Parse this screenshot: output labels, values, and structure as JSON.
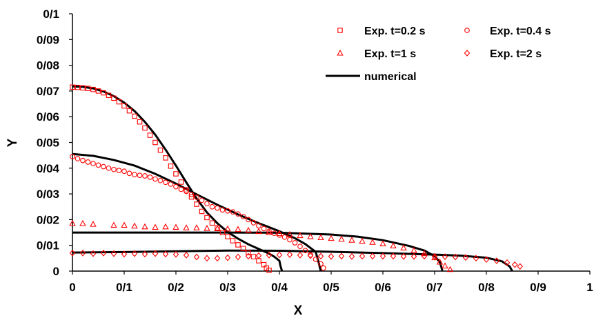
{
  "chart_data": {
    "type": "scatter",
    "xlabel": "X",
    "ylabel": "Y",
    "xlim": [
      0,
      1
    ],
    "ylim": [
      0,
      0.1
    ],
    "x_ticks": [
      {
        "value": 0,
        "label": "0"
      },
      {
        "value": 0.1,
        "label": "0/1"
      },
      {
        "value": 0.2,
        "label": "0/2"
      },
      {
        "value": 0.3,
        "label": "0/3"
      },
      {
        "value": 0.4,
        "label": "0/4"
      },
      {
        "value": 0.5,
        "label": "0/5"
      },
      {
        "value": 0.6,
        "label": "0/6"
      },
      {
        "value": 0.7,
        "label": "0/7"
      },
      {
        "value": 0.8,
        "label": "0/8"
      },
      {
        "value": 0.9,
        "label": "0/9"
      },
      {
        "value": 1,
        "label": "1"
      }
    ],
    "y_ticks": [
      {
        "value": 0,
        "label": "0"
      },
      {
        "value": 0.01,
        "label": "0/01"
      },
      {
        "value": 0.02,
        "label": "0/02"
      },
      {
        "value": 0.03,
        "label": "0/03"
      },
      {
        "value": 0.04,
        "label": "0/04"
      },
      {
        "value": 0.05,
        "label": "0/05"
      },
      {
        "value": 0.06,
        "label": "0/06"
      },
      {
        "value": 0.07,
        "label": "0/07"
      },
      {
        "value": 0.08,
        "label": "0/08"
      },
      {
        "value": 0.09,
        "label": "0/09"
      },
      {
        "value": 0.1,
        "label": "0/1"
      }
    ],
    "grid": false,
    "legend_position": "top-right",
    "colors": {
      "experimental": "#ff0000",
      "numerical": "#000000",
      "axis": "#000000"
    },
    "series": [
      {
        "name": "Exp. t=0.2 s",
        "marker": "square",
        "points": [
          [
            0,
            0.0715
          ],
          [
            0.01,
            0.0714
          ],
          [
            0.02,
            0.0712
          ],
          [
            0.03,
            0.071
          ],
          [
            0.04,
            0.0706
          ],
          [
            0.05,
            0.07
          ],
          [
            0.06,
            0.0693
          ],
          [
            0.07,
            0.0683
          ],
          [
            0.08,
            0.0672
          ],
          [
            0.09,
            0.0658
          ],
          [
            0.1,
            0.0642
          ],
          [
            0.11,
            0.0623
          ],
          [
            0.12,
            0.0602
          ],
          [
            0.13,
            0.058
          ],
          [
            0.14,
            0.0556
          ],
          [
            0.15,
            0.0528
          ],
          [
            0.16,
            0.05
          ],
          [
            0.17,
            0.047
          ],
          [
            0.18,
            0.044
          ],
          [
            0.19,
            0.0408
          ],
          [
            0.2,
            0.0378
          ],
          [
            0.21,
            0.0346
          ],
          [
            0.22,
            0.0316
          ],
          [
            0.23,
            0.0288
          ],
          [
            0.24,
            0.026
          ],
          [
            0.25,
            0.0232
          ],
          [
            0.26,
            0.0208
          ],
          [
            0.27,
            0.0187
          ],
          [
            0.28,
            0.0168
          ],
          [
            0.29,
            0.015
          ],
          [
            0.3,
            0.0134
          ],
          [
            0.31,
            0.0118
          ],
          [
            0.32,
            0.0102
          ],
          [
            0.33,
            0.0088
          ],
          [
            0.34,
            0.0072
          ],
          [
            0.35,
            0.0056
          ],
          [
            0.36,
            0.004
          ],
          [
            0.37,
            0.0025
          ],
          [
            0.375,
            0.0012
          ],
          [
            0.38,
            0.0003
          ]
        ]
      },
      {
        "name": "Exp. t=0.4 s",
        "marker": "circle",
        "points": [
          [
            0,
            0.0445
          ],
          [
            0.01,
            0.0437
          ],
          [
            0.02,
            0.043
          ],
          [
            0.03,
            0.0424
          ],
          [
            0.04,
            0.0418
          ],
          [
            0.05,
            0.0412
          ],
          [
            0.06,
            0.0406
          ],
          [
            0.07,
            0.04
          ],
          [
            0.08,
            0.0395
          ],
          [
            0.09,
            0.0391
          ],
          [
            0.1,
            0.0388
          ],
          [
            0.11,
            0.038
          ],
          [
            0.12,
            0.0375
          ],
          [
            0.13,
            0.0372
          ],
          [
            0.14,
            0.037
          ],
          [
            0.15,
            0.0365
          ],
          [
            0.16,
            0.0358
          ],
          [
            0.17,
            0.0352
          ],
          [
            0.18,
            0.0345
          ],
          [
            0.19,
            0.0338
          ],
          [
            0.2,
            0.0328
          ],
          [
            0.21,
            0.0318
          ],
          [
            0.22,
            0.031
          ],
          [
            0.23,
            0.0298
          ],
          [
            0.24,
            0.0287
          ],
          [
            0.25,
            0.0275
          ],
          [
            0.26,
            0.0262
          ],
          [
            0.27,
            0.025
          ],
          [
            0.28,
            0.0245
          ],
          [
            0.29,
            0.0238
          ],
          [
            0.3,
            0.0234
          ],
          [
            0.31,
            0.023
          ],
          [
            0.32,
            0.0222
          ],
          [
            0.33,
            0.0212
          ],
          [
            0.34,
            0.02
          ],
          [
            0.35,
            0.0188
          ],
          [
            0.36,
            0.0176
          ],
          [
            0.37,
            0.0165
          ],
          [
            0.38,
            0.0155
          ],
          [
            0.39,
            0.0147
          ],
          [
            0.4,
            0.014
          ],
          [
            0.41,
            0.0132
          ],
          [
            0.42,
            0.0122
          ],
          [
            0.43,
            0.011
          ],
          [
            0.44,
            0.0096
          ],
          [
            0.45,
            0.008
          ],
          [
            0.46,
            0.0063
          ],
          [
            0.47,
            0.0046
          ],
          [
            0.48,
            0.0028
          ],
          [
            0.485,
            0.0012
          ]
        ]
      },
      {
        "name": "Exp. t=1 s",
        "marker": "triangle",
        "points": [
          [
            0,
            0.0185
          ],
          [
            0.02,
            0.0185
          ],
          [
            0.04,
            0.0182
          ],
          [
            0.08,
            0.0178
          ],
          [
            0.1,
            0.0178
          ],
          [
            0.12,
            0.0175
          ],
          [
            0.14,
            0.0172
          ],
          [
            0.16,
            0.017
          ],
          [
            0.18,
            0.0172
          ],
          [
            0.2,
            0.017
          ],
          [
            0.22,
            0.0168
          ],
          [
            0.24,
            0.0168
          ],
          [
            0.26,
            0.0166
          ],
          [
            0.28,
            0.0165
          ],
          [
            0.3,
            0.0164
          ],
          [
            0.32,
            0.0162
          ],
          [
            0.34,
            0.0158
          ],
          [
            0.36,
            0.0154
          ],
          [
            0.38,
            0.015
          ],
          [
            0.4,
            0.0146
          ],
          [
            0.42,
            0.0142
          ],
          [
            0.44,
            0.0138
          ],
          [
            0.46,
            0.0134
          ],
          [
            0.48,
            0.013
          ],
          [
            0.5,
            0.0127
          ],
          [
            0.52,
            0.0124
          ],
          [
            0.54,
            0.012
          ],
          [
            0.56,
            0.0116
          ],
          [
            0.58,
            0.0112
          ],
          [
            0.6,
            0.0106
          ],
          [
            0.62,
            0.0098
          ],
          [
            0.64,
            0.009
          ],
          [
            0.66,
            0.008
          ],
          [
            0.68,
            0.0068
          ],
          [
            0.7,
            0.0052
          ],
          [
            0.71,
            0.0035
          ],
          [
            0.72,
            0.002
          ],
          [
            0.73,
            0.0006
          ]
        ]
      },
      {
        "name": "Exp. t=2 s",
        "marker": "diamond",
        "points": [
          [
            0,
            0.007
          ],
          [
            0.02,
            0.007
          ],
          [
            0.04,
            0.0068
          ],
          [
            0.06,
            0.007
          ],
          [
            0.08,
            0.0068
          ],
          [
            0.1,
            0.0066
          ],
          [
            0.12,
            0.0068
          ],
          [
            0.14,
            0.0066
          ],
          [
            0.16,
            0.0068
          ],
          [
            0.18,
            0.0066
          ],
          [
            0.2,
            0.0065
          ],
          [
            0.22,
            0.0062
          ],
          [
            0.24,
            0.0055
          ],
          [
            0.26,
            0.005
          ],
          [
            0.28,
            0.005
          ],
          [
            0.3,
            0.0052
          ],
          [
            0.32,
            0.0055
          ],
          [
            0.34,
            0.0058
          ],
          [
            0.36,
            0.006
          ],
          [
            0.38,
            0.0062
          ],
          [
            0.4,
            0.0063
          ],
          [
            0.42,
            0.0064
          ],
          [
            0.44,
            0.0062
          ],
          [
            0.46,
            0.006
          ],
          [
            0.48,
            0.0058
          ],
          [
            0.5,
            0.0057
          ],
          [
            0.52,
            0.0058
          ],
          [
            0.54,
            0.0057
          ],
          [
            0.56,
            0.0058
          ],
          [
            0.58,
            0.0058
          ],
          [
            0.6,
            0.0058
          ],
          [
            0.62,
            0.0058
          ],
          [
            0.64,
            0.0057
          ],
          [
            0.66,
            0.0057
          ],
          [
            0.68,
            0.0058
          ],
          [
            0.7,
            0.0057
          ],
          [
            0.72,
            0.0056
          ],
          [
            0.74,
            0.0055
          ],
          [
            0.76,
            0.0053
          ],
          [
            0.78,
            0.005
          ],
          [
            0.8,
            0.0045
          ],
          [
            0.82,
            0.004
          ],
          [
            0.84,
            0.0033
          ],
          [
            0.855,
            0.0025
          ],
          [
            0.865,
            0.0018
          ]
        ]
      },
      {
        "name": "numerical",
        "marker": "line",
        "curves": [
          [
            [
              0,
              0.0718
            ],
            [
              0.02,
              0.0716
            ],
            [
              0.04,
              0.071
            ],
            [
              0.06,
              0.0698
            ],
            [
              0.08,
              0.068
            ],
            [
              0.1,
              0.0655
            ],
            [
              0.12,
              0.0622
            ],
            [
              0.14,
              0.058
            ],
            [
              0.16,
              0.053
            ],
            [
              0.18,
              0.0472
            ],
            [
              0.2,
              0.041
            ],
            [
              0.22,
              0.0345
            ],
            [
              0.24,
              0.0282
            ],
            [
              0.26,
              0.0228
            ],
            [
              0.28,
              0.0186
            ],
            [
              0.3,
              0.0152
            ],
            [
              0.32,
              0.0126
            ],
            [
              0.34,
              0.0104
            ],
            [
              0.36,
              0.0086
            ],
            [
              0.38,
              0.0068
            ],
            [
              0.39,
              0.0056
            ],
            [
              0.4,
              0.004
            ],
            [
              0.402,
              0.002
            ],
            [
              0.405,
              0
            ]
          ],
          [
            [
              0,
              0.0455
            ],
            [
              0.04,
              0.0448
            ],
            [
              0.08,
              0.0432
            ],
            [
              0.12,
              0.041
            ],
            [
              0.16,
              0.0378
            ],
            [
              0.2,
              0.034
            ],
            [
              0.24,
              0.0298
            ],
            [
              0.28,
              0.0258
            ],
            [
              0.32,
              0.022
            ],
            [
              0.36,
              0.0186
            ],
            [
              0.4,
              0.0155
            ],
            [
              0.43,
              0.0128
            ],
            [
              0.45,
              0.0105
            ],
            [
              0.47,
              0.0075
            ],
            [
              0.475,
              0.004
            ],
            [
              0.478,
              0.0015
            ],
            [
              0.48,
              0
            ]
          ],
          [
            [
              0,
              0.015
            ],
            [
              0.1,
              0.015
            ],
            [
              0.2,
              0.015
            ],
            [
              0.3,
              0.015
            ],
            [
              0.4,
              0.0149
            ],
            [
              0.5,
              0.0142
            ],
            [
              0.55,
              0.0134
            ],
            [
              0.6,
              0.012
            ],
            [
              0.65,
              0.0098
            ],
            [
              0.68,
              0.008
            ],
            [
              0.7,
              0.0058
            ],
            [
              0.71,
              0.0035
            ],
            [
              0.713,
              0.0015
            ],
            [
              0.715,
              0
            ]
          ],
          [
            [
              0,
              0.0072
            ],
            [
              0.1,
              0.0074
            ],
            [
              0.2,
              0.0077
            ],
            [
              0.3,
              0.008
            ],
            [
              0.4,
              0.0079
            ],
            [
              0.5,
              0.0075
            ],
            [
              0.6,
              0.007
            ],
            [
              0.7,
              0.0064
            ],
            [
              0.75,
              0.006
            ],
            [
              0.8,
              0.0052
            ],
            [
              0.83,
              0.0038
            ],
            [
              0.845,
              0.0018
            ],
            [
              0.85,
              0
            ]
          ]
        ]
      }
    ]
  }
}
